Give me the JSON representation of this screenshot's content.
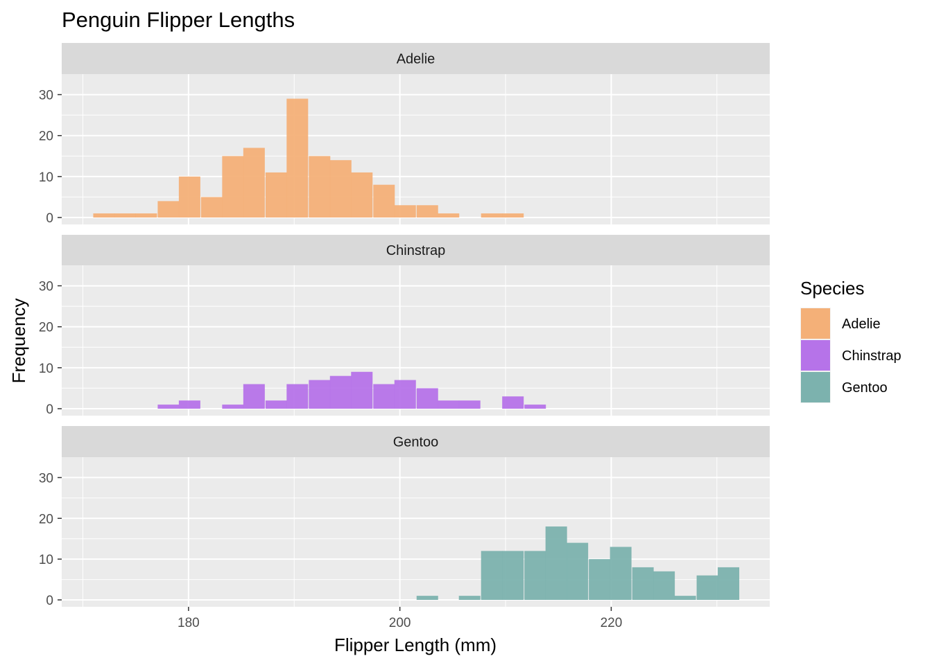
{
  "chart_data": {
    "type": "bar",
    "subtype": "faceted-histogram",
    "title": "Penguin Flipper Lengths",
    "xlabel": "Flipper Length (mm)",
    "ylabel": "Frequency",
    "xlim": [
      168,
      235
    ],
    "ylim": [
      0,
      35
    ],
    "x_ticks": [
      180,
      200,
      220
    ],
    "y_ticks": [
      0,
      10,
      20,
      30
    ],
    "grid": true,
    "bin_width": 2.0345,
    "legend": {
      "title": "Species",
      "placement": "right",
      "entries": [
        {
          "label": "Adelie",
          "color": "#F4B078"
        },
        {
          "label": "Chinstrap",
          "color": "#B673E9"
        },
        {
          "label": "Gentoo",
          "color": "#7CB2AE"
        }
      ]
    },
    "panels": [
      {
        "name": "Adelie",
        "color": "#F4B078",
        "bins": [
          {
            "x": 172,
            "count": 1
          },
          {
            "x": 174,
            "count": 1
          },
          {
            "x": 176,
            "count": 1
          },
          {
            "x": 178.1,
            "count": 4
          },
          {
            "x": 180.1,
            "count": 10
          },
          {
            "x": 182.2,
            "count": 5
          },
          {
            "x": 184.2,
            "count": 15
          },
          {
            "x": 186.2,
            "count": 17
          },
          {
            "x": 188.3,
            "count": 11
          },
          {
            "x": 190.3,
            "count": 29
          },
          {
            "x": 192.4,
            "count": 15
          },
          {
            "x": 194.4,
            "count": 14
          },
          {
            "x": 196.4,
            "count": 11
          },
          {
            "x": 198.5,
            "count": 8
          },
          {
            "x": 200.5,
            "count": 3
          },
          {
            "x": 202.6,
            "count": 3
          },
          {
            "x": 204.6,
            "count": 1
          },
          {
            "x": 206.6,
            "count": 0
          },
          {
            "x": 208.7,
            "count": 1
          },
          {
            "x": 210.7,
            "count": 1
          }
        ]
      },
      {
        "name": "Chinstrap",
        "color": "#B673E9",
        "bins": [
          {
            "x": 178.1,
            "count": 1
          },
          {
            "x": 180.1,
            "count": 2
          },
          {
            "x": 184.2,
            "count": 1
          },
          {
            "x": 186.2,
            "count": 6
          },
          {
            "x": 188.3,
            "count": 2
          },
          {
            "x": 190.3,
            "count": 6
          },
          {
            "x": 192.4,
            "count": 7
          },
          {
            "x": 194.4,
            "count": 8
          },
          {
            "x": 196.4,
            "count": 9
          },
          {
            "x": 198.5,
            "count": 6
          },
          {
            "x": 200.5,
            "count": 7
          },
          {
            "x": 202.6,
            "count": 5
          },
          {
            "x": 204.6,
            "count": 2
          },
          {
            "x": 206.6,
            "count": 2
          },
          {
            "x": 208.7,
            "count": 0
          },
          {
            "x": 210.7,
            "count": 3
          },
          {
            "x": 212.8,
            "count": 1
          }
        ]
      },
      {
        "name": "Gentoo",
        "color": "#7CB2AE",
        "bins": [
          {
            "x": 202.6,
            "count": 1
          },
          {
            "x": 206.6,
            "count": 1
          },
          {
            "x": 208.7,
            "count": 12
          },
          {
            "x": 210.7,
            "count": 12
          },
          {
            "x": 212.8,
            "count": 12
          },
          {
            "x": 214.8,
            "count": 18
          },
          {
            "x": 216.8,
            "count": 14
          },
          {
            "x": 218.9,
            "count": 10
          },
          {
            "x": 220.9,
            "count": 13
          },
          {
            "x": 223,
            "count": 8
          },
          {
            "x": 225,
            "count": 7
          },
          {
            "x": 227,
            "count": 1
          },
          {
            "x": 229.1,
            "count": 6
          },
          {
            "x": 231.1,
            "count": 8
          }
        ]
      }
    ]
  }
}
